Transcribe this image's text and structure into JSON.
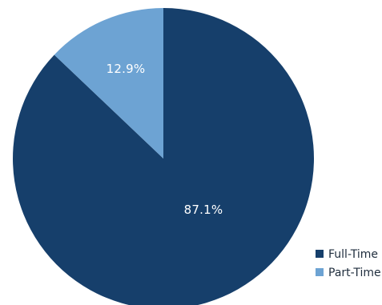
{
  "chart_data": {
    "type": "pie",
    "slices": [
      {
        "label": "Full-Time",
        "value": 87.1,
        "display": "87.1%",
        "color": "#163f6b"
      },
      {
        "label": "Part-Time",
        "value": 12.9,
        "display": "12.9%",
        "color": "#6da3d3"
      }
    ],
    "title": "",
    "legend_position": "bottom-right",
    "start": "top",
    "direction": "clockwise, Part-Time drawn first counter-clockwise from top"
  },
  "colors": {
    "full_time": "#163f6b",
    "part_time": "#6da3d3"
  }
}
